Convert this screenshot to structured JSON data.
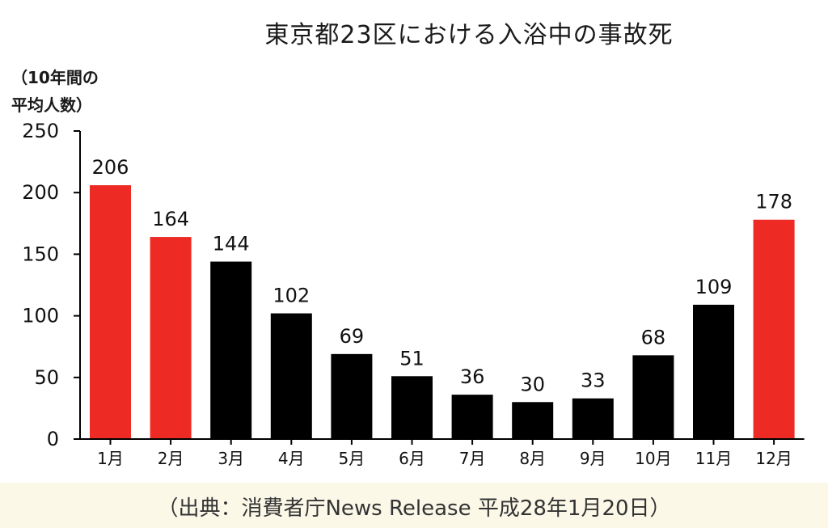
{
  "chart_data": {
    "type": "bar",
    "title": "東京都23区における入浴中の事故死",
    "ylabel_lines": [
      "（10年間の",
      "平均人数）"
    ],
    "xlabel": "",
    "categories": [
      "1月",
      "2月",
      "3月",
      "4月",
      "5月",
      "6月",
      "7月",
      "8月",
      "9月",
      "10月",
      "11月",
      "12月"
    ],
    "values": [
      206,
      164,
      144,
      102,
      69,
      51,
      36,
      30,
      33,
      68,
      109,
      178
    ],
    "bar_colors": [
      "#ee2a24",
      "#ee2a24",
      "#000000",
      "#000000",
      "#000000",
      "#000000",
      "#000000",
      "#000000",
      "#000000",
      "#000000",
      "#000000",
      "#ee2a24"
    ],
    "ylim": [
      0,
      250
    ],
    "yticks": [
      0,
      50,
      100,
      150,
      200,
      250
    ],
    "grid": false,
    "legend": "none",
    "data_labels": true
  },
  "footer": {
    "source": "（出典：消費者庁News Release 平成28年1月20日）"
  }
}
